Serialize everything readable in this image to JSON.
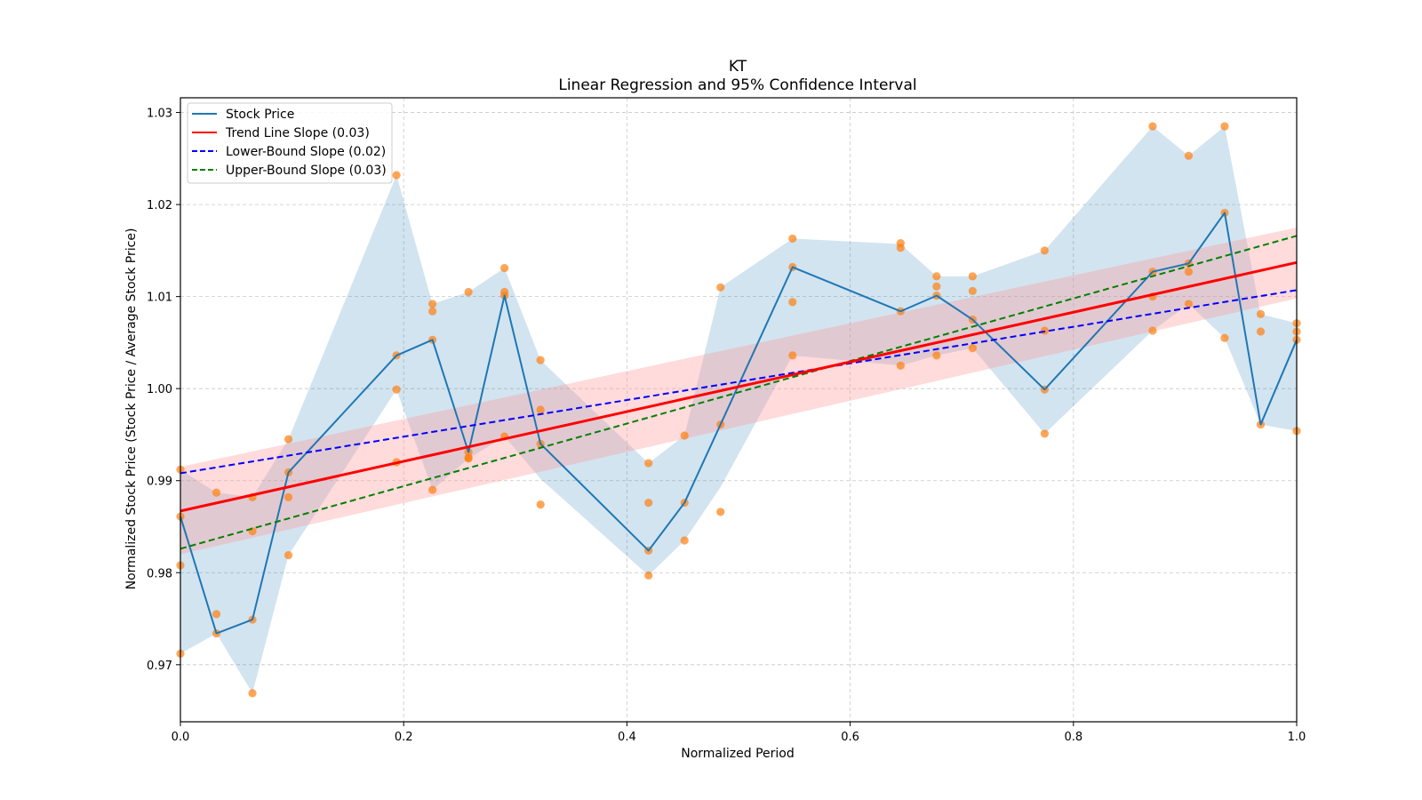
{
  "chart_data": {
    "type": "line",
    "title": "KT",
    "subtitle": "Linear Regression and 95% Confidence Interval",
    "xlabel": "Normalized Period",
    "ylabel": "Normalized Stock Price (Stock Price / Average Stock Price)",
    "xlim": [
      0.0,
      1.0
    ],
    "ylim": [
      0.9638,
      1.0316
    ],
    "grid": true,
    "legend_position": "top-left",
    "x_ticks": [
      0.0,
      0.2,
      0.4,
      0.6,
      0.8,
      1.0
    ],
    "x_tick_labels": [
      "0.0",
      "0.2",
      "0.4",
      "0.6",
      "0.8",
      "1.0"
    ],
    "y_ticks": [
      0.97,
      0.98,
      0.99,
      1.0,
      1.01,
      1.02,
      1.03
    ],
    "y_tick_labels": [
      "0.97",
      "0.98",
      "0.99",
      "1.00",
      "1.01",
      "1.02",
      "1.03"
    ],
    "period_divisor": 31,
    "legend": [
      {
        "label": "Stock Price",
        "color": "#1f77b4",
        "style": "solid"
      },
      {
        "label": "Trend Line Slope (0.03)",
        "color": "#ff0000",
        "style": "solid"
      },
      {
        "label": "Lower-Bound Slope (0.02)",
        "color": "#0000ff",
        "style": "dashed"
      },
      {
        "label": "Upper-Bound Slope (0.03)",
        "color": "#008000",
        "style": "dashed"
      }
    ],
    "stock_price": {
      "name": "Stock Price",
      "color": "#1f77b4",
      "period_index": [
        0,
        1,
        2,
        3,
        6,
        7,
        8,
        9,
        10,
        13,
        14,
        15,
        17,
        20,
        21,
        22,
        24,
        27,
        28,
        29,
        30,
        31
      ],
      "values": [
        0.9861,
        0.9734,
        0.9749,
        0.9909,
        1.0036,
        1.0053,
        0.9931,
        1.0101,
        0.994,
        0.9824,
        0.9876,
        0.9961,
        1.0132,
        1.0084,
        1.0101,
        1.0075,
        0.9999,
        1.0127,
        1.0136,
        1.0191,
        0.9961,
        1.0053
      ],
      "band_upper": [
        0.9912,
        0.9887,
        0.9882,
        0.9945,
        1.0232,
        1.0092,
        1.0105,
        1.0131,
        1.0031,
        0.9919,
        0.9949,
        1.011,
        1.0163,
        1.0157,
        1.0122,
        1.0122,
        1.015,
        1.0285,
        1.0253,
        1.0285,
        1.0081,
        1.0071
      ],
      "band_lower": [
        0.9712,
        0.9734,
        0.9669,
        0.9819,
        0.9999,
        0.989,
        0.9924,
        0.9948,
        0.9902,
        0.9797,
        0.9835,
        0.9893,
        1.0036,
        1.0025,
        1.0036,
        1.0044,
        0.9951,
        1.0063,
        1.0092,
        1.0055,
        0.9961,
        0.9954
      ],
      "band_color": "#1f77b4"
    },
    "scatter": {
      "color": "#ff7f0e",
      "points": [
        [
          0,
          0.9912
        ],
        [
          0,
          0.9861
        ],
        [
          0,
          0.9808
        ],
        [
          0,
          0.9712
        ],
        [
          1,
          0.9887
        ],
        [
          1,
          0.9755
        ],
        [
          1,
          0.9734
        ],
        [
          2,
          0.9882
        ],
        [
          2,
          0.9845
        ],
        [
          2,
          0.9749
        ],
        [
          2,
          0.9669
        ],
        [
          3,
          0.9945
        ],
        [
          3,
          0.9909
        ],
        [
          3,
          0.9882
        ],
        [
          3,
          0.9819
        ],
        [
          6,
          1.0232
        ],
        [
          6,
          1.0036
        ],
        [
          6,
          0.9999
        ],
        [
          6,
          0.992
        ],
        [
          7,
          1.0092
        ],
        [
          7,
          1.0084
        ],
        [
          7,
          1.0053
        ],
        [
          7,
          0.989
        ],
        [
          8,
          1.0105
        ],
        [
          8,
          0.9931
        ],
        [
          8,
          0.9925
        ],
        [
          8,
          0.9924
        ],
        [
          9,
          1.0131
        ],
        [
          9,
          1.0105
        ],
        [
          9,
          1.0101
        ],
        [
          9,
          0.9948
        ],
        [
          10,
          1.0031
        ],
        [
          10,
          0.9977
        ],
        [
          10,
          0.994
        ],
        [
          10,
          0.9874
        ],
        [
          13,
          0.9919
        ],
        [
          13,
          0.9876
        ],
        [
          13,
          0.9824
        ],
        [
          13,
          0.9797
        ],
        [
          14,
          0.9949
        ],
        [
          14,
          0.9876
        ],
        [
          14,
          0.9835
        ],
        [
          15,
          1.011
        ],
        [
          15,
          0.9961
        ],
        [
          15,
          0.9866
        ],
        [
          17,
          1.0163
        ],
        [
          17,
          1.0132
        ],
        [
          17,
          1.0094
        ],
        [
          17,
          1.0036
        ],
        [
          20,
          1.0158
        ],
        [
          20,
          1.0153
        ],
        [
          20,
          1.0084
        ],
        [
          20,
          1.0025
        ],
        [
          21,
          1.0122
        ],
        [
          21,
          1.0111
        ],
        [
          21,
          1.0101
        ],
        [
          21,
          1.0036
        ],
        [
          22,
          1.0122
        ],
        [
          22,
          1.0106
        ],
        [
          22,
          1.0075
        ],
        [
          22,
          1.0044
        ],
        [
          24,
          1.015
        ],
        [
          24,
          1.0063
        ],
        [
          24,
          0.9999
        ],
        [
          24,
          0.9951
        ],
        [
          27,
          1.0285
        ],
        [
          27,
          1.0127
        ],
        [
          27,
          1.01
        ],
        [
          27,
          1.0063
        ],
        [
          28,
          1.0253
        ],
        [
          28,
          1.0136
        ],
        [
          28,
          1.0127
        ],
        [
          28,
          1.0092
        ],
        [
          29,
          1.0285
        ],
        [
          29,
          1.0191
        ],
        [
          29,
          1.0055
        ],
        [
          30,
          1.0081
        ],
        [
          30,
          1.0062
        ],
        [
          30,
          0.9961
        ],
        [
          31,
          1.0071
        ],
        [
          31,
          1.0062
        ],
        [
          31,
          1.0053
        ],
        [
          31,
          0.9954
        ]
      ]
    },
    "trend_line": {
      "name": "Trend Line Slope (0.03)",
      "color": "#ff0000",
      "slope_label": "0.03",
      "y_at_x0": 0.9867,
      "y_at_x1": 1.0137
    },
    "trend_ci_band": {
      "color": "#ff9999",
      "upper_at_x0": 0.9915,
      "upper_at_x1": 1.0175,
      "lower_at_x0": 0.982,
      "lower_at_x1": 1.0098
    },
    "lower_bound_line": {
      "name": "Lower-Bound Slope (0.02)",
      "color": "#0000ff",
      "slope_label": "0.02",
      "y_at_x0": 0.9908,
      "y_at_x1": 1.0107
    },
    "upper_bound_line": {
      "name": "Upper-Bound Slope (0.03)",
      "color": "#008000",
      "slope_label": "0.03",
      "y_at_x0": 0.9826,
      "y_at_x1": 1.0166
    }
  }
}
